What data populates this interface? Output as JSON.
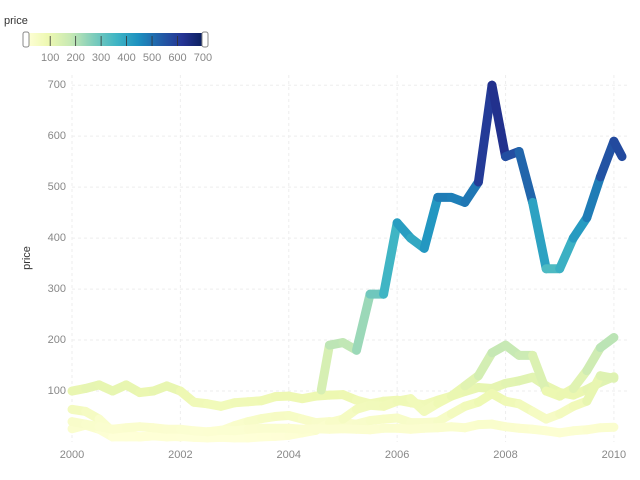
{
  "chart_data": {
    "type": "line",
    "y_label": "price",
    "legend_title": "price",
    "color_scale": [
      "#ffffd9",
      "#edf8b1",
      "#c7e9b4",
      "#7fcdbb",
      "#41b6c4",
      "#1d91c0",
      "#225ea8",
      "#253494",
      "#081d58"
    ],
    "color_domain": [
      5,
      708
    ],
    "legend_ticks": [
      100,
      200,
      300,
      400,
      500,
      600,
      700
    ],
    "xlim": [
      2000,
      2010.26
    ],
    "xticks": [
      2000,
      2002,
      2004,
      2006,
      2008,
      2010
    ],
    "ylim": [
      0,
      720
    ],
    "yticks": [
      100,
      200,
      300,
      400,
      500,
      600,
      700
    ],
    "grid": true,
    "x": [
      2000,
      2000.25,
      2000.5,
      2000.75,
      2001,
      2001.25,
      2001.5,
      2001.75,
      2002,
      2002.25,
      2002.5,
      2002.75,
      2003,
      2003.25,
      2003.5,
      2003.75,
      2004,
      2004.25,
      2004.5,
      2004.75,
      2005,
      2005.25,
      2005.5,
      2005.75,
      2006,
      2006.25,
      2006.5,
      2006.75,
      2007,
      2007.25,
      2007.5,
      2007.75,
      2008,
      2008.25,
      2008.5,
      2008.75,
      2009,
      2009.25,
      2009.5,
      2009.75,
      2010
    ],
    "series": [
      {
        "values": [
          100,
          105,
          112,
          100,
          112,
          97,
          100,
          110,
          100,
          78,
          75,
          70,
          77,
          79,
          81,
          89,
          90,
          85,
          90,
          92,
          93,
          82,
          75,
          80,
          82,
          77,
          73,
          82,
          90,
          99,
          107,
          105,
          115,
          120,
          127,
          110,
          97,
          92,
          103,
          117,
          128
        ]
      },
      {
        "values": [
          64,
          60,
          45,
          20,
          15,
          10,
          12,
          12,
          10,
          14,
          20,
          22,
          32,
          40,
          46,
          50,
          52,
          45,
          38,
          40,
          38,
          35,
          42,
          45,
          47,
          38,
          38,
          40,
          55,
          70,
          78,
          95,
          80,
          75,
          60,
          45,
          55,
          70,
          80,
          130,
          125
        ]
      },
      {
        "values": [
          26,
          33,
          25,
          10,
          10,
          10,
          12,
          10,
          11,
          9,
          8,
          9,
          8,
          8,
          10,
          11,
          13,
          18,
          23,
          38,
          45,
          64,
          72,
          70,
          80,
          85,
          60,
          76,
          90,
          110,
          130,
          175,
          190,
          170,
          170,
          100,
          90,
          105,
          140,
          185,
          205
        ]
      },
      {
        "values": [
          40,
          35,
          30,
          25,
          28,
          30,
          28,
          25,
          25,
          22,
          20,
          23,
          22,
          25,
          27,
          27,
          27,
          25,
          26,
          25,
          26,
          25,
          24,
          27,
          27,
          25,
          27,
          28,
          30,
          28,
          34,
          35,
          30,
          27,
          25,
          22,
          18,
          22,
          24,
          28,
          29
        ]
      },
      {
        "x": [
          2004.6,
          2004.75,
          2005,
          2005.25,
          2005.5,
          2005.75,
          2006,
          2006.25,
          2006.5,
          2006.75,
          2007,
          2007.25,
          2007.5,
          2007.75,
          2008,
          2008.25,
          2008.5,
          2008.75,
          2009,
          2009.25,
          2009.5,
          2009.75,
          2010,
          2010.15
        ],
        "values": [
          102,
          190,
          195,
          180,
          290,
          290,
          430,
          400,
          380,
          480,
          480,
          470,
          510,
          700,
          560,
          570,
          470,
          340,
          340,
          400,
          440,
          520,
          590,
          560
        ]
      }
    ]
  }
}
